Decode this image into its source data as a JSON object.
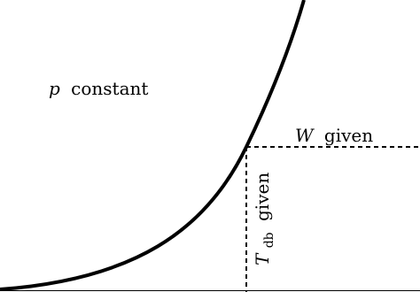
{
  "labels": {
    "pressure": {
      "symbol": "p",
      "text": "constant"
    },
    "humidity": {
      "symbol": "W",
      "text": "given"
    },
    "temperature": {
      "symbol": "T",
      "subscript": "db",
      "text": "given"
    }
  }
}
